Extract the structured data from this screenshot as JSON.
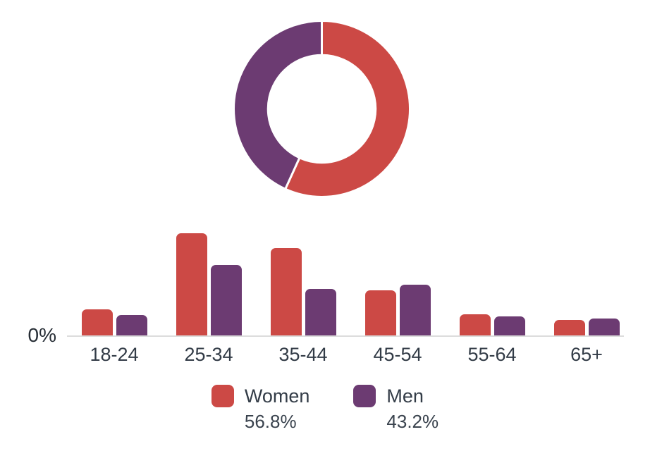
{
  "colors": {
    "women": "#cc4945",
    "men": "#6c3b72",
    "axis_line": "#dcdcdc",
    "label_text": "#333c47",
    "segment_border": "#ffffff"
  },
  "axis": {
    "zero_label": "0%"
  },
  "legend": {
    "items": [
      {
        "label": "Women",
        "percent": "56.8%",
        "color": "#cc4945"
      },
      {
        "label": "Men",
        "percent": "43.2%",
        "color": "#6c3b72"
      }
    ]
  },
  "chart_data": [
    {
      "type": "pie",
      "subtype": "doughnut",
      "labels": [
        "Women",
        "Men"
      ],
      "values": [
        56.8,
        43.2
      ],
      "colors": [
        "#cc4945",
        "#6c3b72"
      ],
      "start_angle_deg": 0,
      "direction": "clockwise",
      "inner_radius_ratio": 0.61,
      "segment_border_color": "#ffffff",
      "segment_border_width": 3,
      "legend_position": "bottom"
    },
    {
      "type": "bar",
      "categories": [
        "18-24",
        "25-34",
        "35-44",
        "45-54",
        "55-64",
        "65+"
      ],
      "series": [
        {
          "name": "Women",
          "color": "#cc4945",
          "values": [
            5.0,
            19.5,
            16.6,
            8.6,
            4.1,
            3.0
          ]
        },
        {
          "name": "Men",
          "color": "#6c3b72",
          "values": [
            4.0,
            13.5,
            8.9,
            9.7,
            3.7,
            3.4
          ]
        }
      ],
      "value_unit": "%",
      "xlabel": "",
      "ylabel": "",
      "ylim": [
        0,
        20
      ],
      "yticks": [
        "0%"
      ],
      "grid": false,
      "bar_corner_radius": 7
    }
  ]
}
